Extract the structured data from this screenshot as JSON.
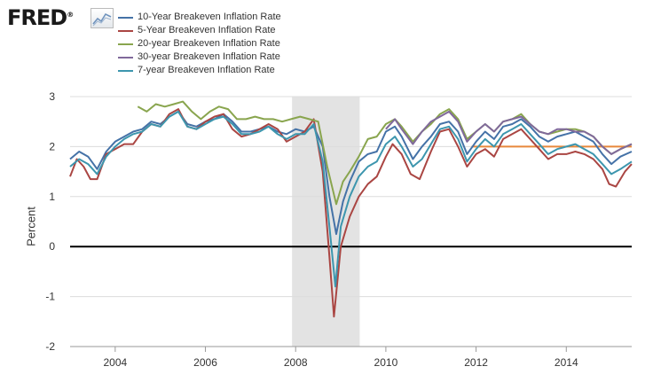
{
  "brand": {
    "name": "FRED",
    "mark": "®",
    "icon": "trend-line-icon"
  },
  "chart_data": {
    "type": "line",
    "title": "",
    "xlabel": "",
    "ylabel": "Percent",
    "xlim": [
      2003.0,
      2015.45
    ],
    "ylim": [
      -2,
      3
    ],
    "y_ticks": [
      3,
      2,
      1,
      0,
      -1,
      -2
    ],
    "x_ticks": [
      2004,
      2006,
      2008,
      2010,
      2012,
      2014
    ],
    "x_tick_labels": [
      "2004",
      "2006",
      "2008",
      "2010",
      "2012",
      "2014"
    ],
    "recession": {
      "start": 2007.92,
      "end": 2009.42,
      "color": "#e3e3e3"
    },
    "zero_line": {
      "value": 0,
      "color": "#000000"
    },
    "legend_position": "top-left",
    "reference_line": {
      "color": "#e8883a",
      "points": [
        [
          2011.9,
          2.0
        ],
        [
          2015.45,
          2.0
        ]
      ]
    },
    "series": [
      {
        "name": "10-Year Breakeven Inflation Rate",
        "color": "#4572a7",
        "points": [
          [
            2003.0,
            1.75
          ],
          [
            2003.2,
            1.9
          ],
          [
            2003.4,
            1.8
          ],
          [
            2003.6,
            1.55
          ],
          [
            2003.8,
            1.9
          ],
          [
            2004.0,
            2.1
          ],
          [
            2004.2,
            2.2
          ],
          [
            2004.4,
            2.3
          ],
          [
            2004.6,
            2.35
          ],
          [
            2004.8,
            2.5
          ],
          [
            2005.0,
            2.45
          ],
          [
            2005.2,
            2.6
          ],
          [
            2005.4,
            2.7
          ],
          [
            2005.6,
            2.45
          ],
          [
            2005.8,
            2.4
          ],
          [
            2006.0,
            2.5
          ],
          [
            2006.2,
            2.55
          ],
          [
            2006.4,
            2.65
          ],
          [
            2006.6,
            2.5
          ],
          [
            2006.8,
            2.3
          ],
          [
            2007.0,
            2.3
          ],
          [
            2007.2,
            2.35
          ],
          [
            2007.4,
            2.4
          ],
          [
            2007.6,
            2.3
          ],
          [
            2007.8,
            2.25
          ],
          [
            2008.0,
            2.35
          ],
          [
            2008.2,
            2.3
          ],
          [
            2008.4,
            2.4
          ],
          [
            2008.6,
            2.0
          ],
          [
            2008.75,
            1.0
          ],
          [
            2008.9,
            0.25
          ],
          [
            2009.05,
            0.9
          ],
          [
            2009.2,
            1.3
          ],
          [
            2009.4,
            1.7
          ],
          [
            2009.6,
            1.85
          ],
          [
            2009.8,
            1.9
          ],
          [
            2010.0,
            2.3
          ],
          [
            2010.2,
            2.4
          ],
          [
            2010.35,
            2.2
          ],
          [
            2010.6,
            1.75
          ],
          [
            2010.8,
            2.0
          ],
          [
            2011.0,
            2.2
          ],
          [
            2011.2,
            2.45
          ],
          [
            2011.4,
            2.5
          ],
          [
            2011.6,
            2.3
          ],
          [
            2011.8,
            1.85
          ],
          [
            2012.0,
            2.1
          ],
          [
            2012.2,
            2.3
          ],
          [
            2012.4,
            2.15
          ],
          [
            2012.6,
            2.4
          ],
          [
            2012.8,
            2.45
          ],
          [
            2013.0,
            2.55
          ],
          [
            2013.2,
            2.4
          ],
          [
            2013.4,
            2.2
          ],
          [
            2013.6,
            2.1
          ],
          [
            2013.8,
            2.2
          ],
          [
            2014.0,
            2.25
          ],
          [
            2014.2,
            2.3
          ],
          [
            2014.4,
            2.2
          ],
          [
            2014.6,
            2.1
          ],
          [
            2014.8,
            1.85
          ],
          [
            2015.0,
            1.65
          ],
          [
            2015.2,
            1.8
          ],
          [
            2015.45,
            1.9
          ]
        ]
      },
      {
        "name": "5-Year Breakeven Inflation Rate",
        "color": "#aa4643",
        "points": [
          [
            2003.0,
            1.4
          ],
          [
            2003.15,
            1.75
          ],
          [
            2003.3,
            1.6
          ],
          [
            2003.45,
            1.35
          ],
          [
            2003.6,
            1.35
          ],
          [
            2003.8,
            1.85
          ],
          [
            2004.0,
            1.95
          ],
          [
            2004.2,
            2.05
          ],
          [
            2004.4,
            2.05
          ],
          [
            2004.6,
            2.3
          ],
          [
            2004.8,
            2.45
          ],
          [
            2005.0,
            2.4
          ],
          [
            2005.2,
            2.65
          ],
          [
            2005.4,
            2.75
          ],
          [
            2005.6,
            2.4
          ],
          [
            2005.8,
            2.35
          ],
          [
            2006.0,
            2.5
          ],
          [
            2006.2,
            2.6
          ],
          [
            2006.4,
            2.65
          ],
          [
            2006.6,
            2.35
          ],
          [
            2006.8,
            2.2
          ],
          [
            2007.0,
            2.25
          ],
          [
            2007.2,
            2.35
          ],
          [
            2007.4,
            2.45
          ],
          [
            2007.6,
            2.35
          ],
          [
            2007.8,
            2.1
          ],
          [
            2008.0,
            2.2
          ],
          [
            2008.2,
            2.3
          ],
          [
            2008.4,
            2.55
          ],
          [
            2008.6,
            1.5
          ],
          [
            2008.75,
            -0.2
          ],
          [
            2008.85,
            -1.4
          ],
          [
            2009.0,
            0.0
          ],
          [
            2009.2,
            0.6
          ],
          [
            2009.4,
            1.0
          ],
          [
            2009.6,
            1.25
          ],
          [
            2009.8,
            1.4
          ],
          [
            2010.0,
            1.8
          ],
          [
            2010.15,
            2.05
          ],
          [
            2010.35,
            1.85
          ],
          [
            2010.55,
            1.45
          ],
          [
            2010.75,
            1.35
          ],
          [
            2011.0,
            1.9
          ],
          [
            2011.2,
            2.3
          ],
          [
            2011.4,
            2.35
          ],
          [
            2011.6,
            2.0
          ],
          [
            2011.8,
            1.6
          ],
          [
            2012.0,
            1.85
          ],
          [
            2012.2,
            1.95
          ],
          [
            2012.4,
            1.8
          ],
          [
            2012.6,
            2.15
          ],
          [
            2012.8,
            2.25
          ],
          [
            2013.0,
            2.35
          ],
          [
            2013.2,
            2.15
          ],
          [
            2013.4,
            1.95
          ],
          [
            2013.6,
            1.75
          ],
          [
            2013.8,
            1.85
          ],
          [
            2014.0,
            1.85
          ],
          [
            2014.2,
            1.9
          ],
          [
            2014.4,
            1.85
          ],
          [
            2014.6,
            1.75
          ],
          [
            2014.8,
            1.55
          ],
          [
            2014.95,
            1.25
          ],
          [
            2015.1,
            1.2
          ],
          [
            2015.3,
            1.5
          ],
          [
            2015.45,
            1.65
          ]
        ]
      },
      {
        "name": "20-year Breakeven Inflation Rate",
        "color": "#89a54e",
        "points": [
          [
            2004.5,
            2.8
          ],
          [
            2004.7,
            2.7
          ],
          [
            2004.9,
            2.85
          ],
          [
            2005.1,
            2.8
          ],
          [
            2005.3,
            2.85
          ],
          [
            2005.5,
            2.9
          ],
          [
            2005.7,
            2.7
          ],
          [
            2005.9,
            2.55
          ],
          [
            2006.1,
            2.7
          ],
          [
            2006.3,
            2.8
          ],
          [
            2006.5,
            2.75
          ],
          [
            2006.7,
            2.55
          ],
          [
            2006.9,
            2.55
          ],
          [
            2007.1,
            2.6
          ],
          [
            2007.3,
            2.55
          ],
          [
            2007.5,
            2.55
          ],
          [
            2007.7,
            2.5
          ],
          [
            2007.9,
            2.55
          ],
          [
            2008.1,
            2.6
          ],
          [
            2008.3,
            2.55
          ],
          [
            2008.5,
            2.5
          ],
          [
            2008.7,
            1.6
          ],
          [
            2008.9,
            0.85
          ],
          [
            2009.05,
            1.3
          ],
          [
            2009.2,
            1.5
          ],
          [
            2009.4,
            1.8
          ],
          [
            2009.6,
            2.15
          ],
          [
            2009.8,
            2.2
          ],
          [
            2010.0,
            2.45
          ],
          [
            2010.2,
            2.55
          ],
          [
            2010.35,
            2.4
          ],
          [
            2010.6,
            2.1
          ],
          [
            2010.8,
            2.3
          ],
          [
            2011.0,
            2.45
          ],
          [
            2011.2,
            2.65
          ],
          [
            2011.4,
            2.75
          ],
          [
            2011.6,
            2.55
          ],
          [
            2011.8,
            2.15
          ],
          [
            2012.0,
            2.3
          ],
          [
            2012.2,
            2.45
          ],
          [
            2012.4,
            2.3
          ],
          [
            2012.6,
            2.5
          ],
          [
            2012.8,
            2.55
          ],
          [
            2013.0,
            2.65
          ],
          [
            2013.2,
            2.45
          ],
          [
            2013.4,
            2.3
          ],
          [
            2013.6,
            2.25
          ],
          [
            2013.8,
            2.3
          ],
          [
            2014.0,
            2.35
          ],
          [
            2014.2,
            2.35
          ],
          [
            2014.4,
            2.3
          ],
          [
            2014.6,
            2.2
          ],
          [
            2014.8,
            2.0
          ],
          [
            2015.0,
            1.85
          ],
          [
            2015.2,
            1.95
          ],
          [
            2015.45,
            2.05
          ]
        ]
      },
      {
        "name": "30-year Breakeven Inflation Rate",
        "color": "#80699b",
        "points": [
          [
            2010.0,
            2.35
          ],
          [
            2010.2,
            2.55
          ],
          [
            2010.35,
            2.35
          ],
          [
            2010.6,
            2.05
          ],
          [
            2010.8,
            2.3
          ],
          [
            2011.0,
            2.5
          ],
          [
            2011.2,
            2.6
          ],
          [
            2011.4,
            2.7
          ],
          [
            2011.6,
            2.5
          ],
          [
            2011.8,
            2.1
          ],
          [
            2012.0,
            2.3
          ],
          [
            2012.2,
            2.45
          ],
          [
            2012.4,
            2.3
          ],
          [
            2012.6,
            2.5
          ],
          [
            2012.8,
            2.55
          ],
          [
            2013.0,
            2.6
          ],
          [
            2013.2,
            2.45
          ],
          [
            2013.4,
            2.3
          ],
          [
            2013.6,
            2.25
          ],
          [
            2013.8,
            2.35
          ],
          [
            2014.0,
            2.35
          ],
          [
            2014.2,
            2.3
          ],
          [
            2014.4,
            2.3
          ],
          [
            2014.6,
            2.2
          ],
          [
            2014.8,
            2.0
          ],
          [
            2015.0,
            1.85
          ],
          [
            2015.2,
            1.95
          ],
          [
            2015.45,
            2.05
          ]
        ]
      },
      {
        "name": "7-year Breakeven Inflation Rate",
        "color": "#3d96ae",
        "points": [
          [
            2003.0,
            1.6
          ],
          [
            2003.2,
            1.75
          ],
          [
            2003.4,
            1.65
          ],
          [
            2003.6,
            1.45
          ],
          [
            2003.8,
            1.8
          ],
          [
            2004.0,
            2.0
          ],
          [
            2004.2,
            2.15
          ],
          [
            2004.4,
            2.25
          ],
          [
            2004.6,
            2.3
          ],
          [
            2004.8,
            2.45
          ],
          [
            2005.0,
            2.4
          ],
          [
            2005.2,
            2.6
          ],
          [
            2005.4,
            2.7
          ],
          [
            2005.6,
            2.4
          ],
          [
            2005.8,
            2.35
          ],
          [
            2006.0,
            2.45
          ],
          [
            2006.2,
            2.55
          ],
          [
            2006.4,
            2.6
          ],
          [
            2006.6,
            2.45
          ],
          [
            2006.8,
            2.25
          ],
          [
            2007.0,
            2.25
          ],
          [
            2007.2,
            2.3
          ],
          [
            2007.4,
            2.4
          ],
          [
            2007.6,
            2.25
          ],
          [
            2007.8,
            2.15
          ],
          [
            2008.0,
            2.25
          ],
          [
            2008.2,
            2.25
          ],
          [
            2008.4,
            2.45
          ],
          [
            2008.6,
            1.7
          ],
          [
            2008.75,
            0.4
          ],
          [
            2008.88,
            -0.8
          ],
          [
            2009.0,
            0.4
          ],
          [
            2009.2,
            1.0
          ],
          [
            2009.4,
            1.4
          ],
          [
            2009.6,
            1.6
          ],
          [
            2009.8,
            1.7
          ],
          [
            2010.0,
            2.05
          ],
          [
            2010.2,
            2.2
          ],
          [
            2010.35,
            2.0
          ],
          [
            2010.6,
            1.6
          ],
          [
            2010.8,
            1.75
          ],
          [
            2011.0,
            2.05
          ],
          [
            2011.2,
            2.35
          ],
          [
            2011.4,
            2.4
          ],
          [
            2011.6,
            2.15
          ],
          [
            2011.8,
            1.7
          ],
          [
            2012.0,
            1.95
          ],
          [
            2012.2,
            2.15
          ],
          [
            2012.4,
            2.0
          ],
          [
            2012.6,
            2.25
          ],
          [
            2012.8,
            2.35
          ],
          [
            2013.0,
            2.45
          ],
          [
            2013.2,
            2.25
          ],
          [
            2013.4,
            2.05
          ],
          [
            2013.6,
            1.85
          ],
          [
            2013.8,
            1.95
          ],
          [
            2014.0,
            2.0
          ],
          [
            2014.2,
            2.05
          ],
          [
            2014.4,
            1.95
          ],
          [
            2014.6,
            1.85
          ],
          [
            2014.8,
            1.65
          ],
          [
            2015.0,
            1.45
          ],
          [
            2015.2,
            1.55
          ],
          [
            2015.45,
            1.7
          ]
        ]
      }
    ]
  }
}
